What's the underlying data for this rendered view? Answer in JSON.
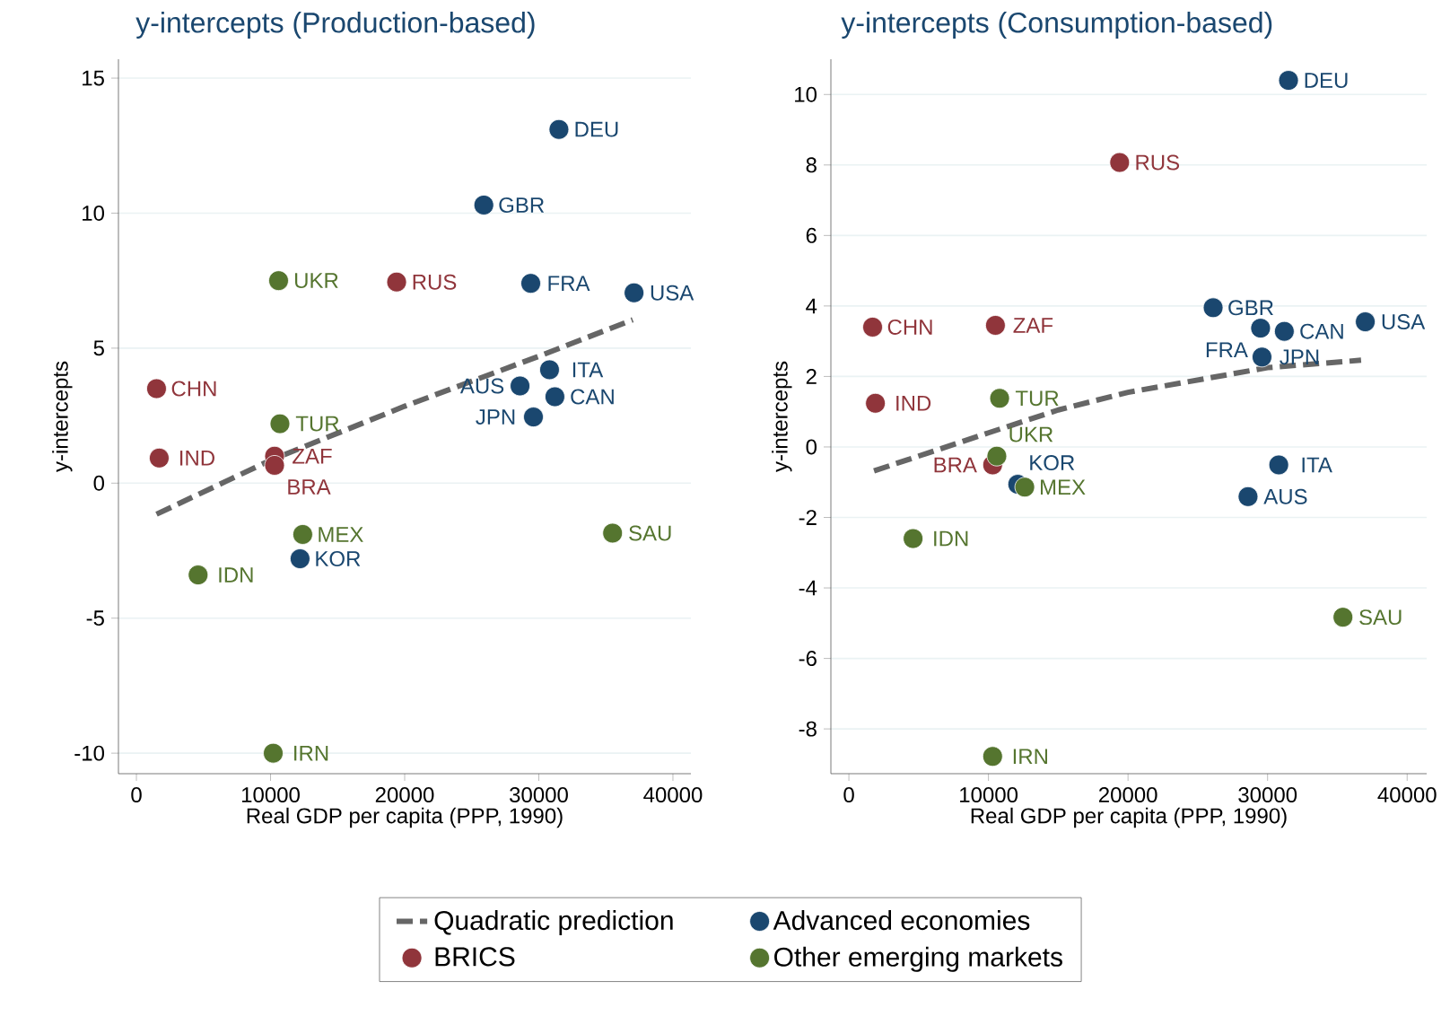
{
  "chart_data": [
    {
      "type": "scatter",
      "title": "y-intercepts (Production-based)",
      "xlabel": "Real GDP per capita (PPP, 1990)",
      "ylabel": "y-intercepts",
      "xlim": [
        -1340,
        41340
      ],
      "ylim": [
        -10.76,
        15.7
      ],
      "xticks": [
        0,
        10000,
        20000,
        30000,
        40000
      ],
      "yticks": [
        -10,
        -5,
        0,
        5,
        10,
        15
      ],
      "grid": "y",
      "legend": "bottom",
      "series": [
        {
          "name": "Quadratic prediction",
          "type": "line",
          "line_style": "dashed",
          "marker": "none",
          "color": "#666666",
          "x": [
            1500,
            10000,
            20000,
            30000,
            37000
          ],
          "values": [
            -1.15,
            0.85,
            2.85,
            4.7,
            6.05
          ]
        },
        {
          "name": "Advanced economies",
          "marker": "circle",
          "color": "#1a476f",
          "x": [
            31500,
            25900,
            29400,
            37100,
            30800,
            28600,
            31200,
            29600,
            12200
          ],
          "values": [
            13.1,
            10.3,
            7.4,
            7.05,
            4.2,
            3.6,
            3.2,
            2.45,
            -2.8
          ],
          "value_labels": [
            "DEU",
            "GBR",
            "FRA",
            "USA",
            "ITA",
            "AUS",
            "CAN",
            "JPN",
            "KOR"
          ]
        },
        {
          "name": "BRICS",
          "marker": "circle",
          "color": "#90353b",
          "x": [
            19400,
            1500,
            1700,
            10300,
            10300
          ],
          "values": [
            7.45,
            3.5,
            0.93,
            1.0,
            0.66
          ],
          "value_labels": [
            "RUS",
            "CHN",
            "IND",
            "ZAF",
            "BRA"
          ]
        },
        {
          "name": "Other emerging markets",
          "marker": "circle",
          "color": "#55752f",
          "x": [
            10600,
            10700,
            12400,
            4600,
            35500,
            10200
          ],
          "values": [
            7.5,
            2.2,
            -1.9,
            -3.4,
            -1.85,
            -10.0
          ],
          "value_labels": [
            "UKR",
            "TUR",
            "MEX",
            "IDN",
            "SAU",
            "IRN"
          ]
        }
      ]
    },
    {
      "type": "scatter",
      "title": "y-intercepts (Consumption-based)",
      "xlabel": "Real GDP per capita (PPP, 1990)",
      "ylabel": "y-intercepts",
      "xlim": [
        -1290,
        41400
      ],
      "ylim": [
        -9.27,
        11.0
      ],
      "xticks": [
        0,
        10000,
        20000,
        30000,
        40000
      ],
      "yticks": [
        -8,
        -6,
        -4,
        -2,
        0,
        2,
        4,
        6,
        8,
        10
      ],
      "grid": "y",
      "series": [
        {
          "type": "line",
          "line_style": "dashed",
          "marker": "none",
          "color": "#666666",
          "x": [
            1800,
            10000,
            15000,
            20000,
            30000,
            36700
          ],
          "values": [
            -0.68,
            0.4,
            1.05,
            1.55,
            2.25,
            2.46
          ]
        },
        {
          "marker": "circle",
          "color": "#1a476f",
          "x": [
            31500,
            26100,
            29500,
            31200,
            37000,
            29600,
            30800,
            28600,
            12100
          ],
          "values": [
            10.4,
            3.95,
            3.37,
            3.28,
            3.55,
            2.55,
            -0.51,
            -1.41,
            -1.06
          ],
          "value_labels": [
            "DEU",
            "GBR",
            "FRA",
            "CAN",
            "USA",
            "JPN",
            "ITA",
            "AUS",
            "KOR"
          ]
        },
        {
          "marker": "circle",
          "color": "#90353b",
          "x": [
            19400,
            1700,
            10500,
            1900,
            10300
          ],
          "values": [
            8.07,
            3.4,
            3.45,
            1.24,
            -0.51
          ],
          "value_labels": [
            "RUS",
            "CHN",
            "ZAF",
            "IND",
            "BRA"
          ]
        },
        {
          "marker": "circle",
          "color": "#55752f",
          "x": [
            10800,
            10600,
            12600,
            4600,
            35400,
            10300
          ],
          "values": [
            1.38,
            -0.26,
            -1.14,
            -2.6,
            -4.83,
            -8.78
          ],
          "value_labels": [
            "TUR",
            "UKR",
            "MEX",
            "IDN",
            "SAU",
            "IRN"
          ]
        }
      ]
    }
  ]
}
